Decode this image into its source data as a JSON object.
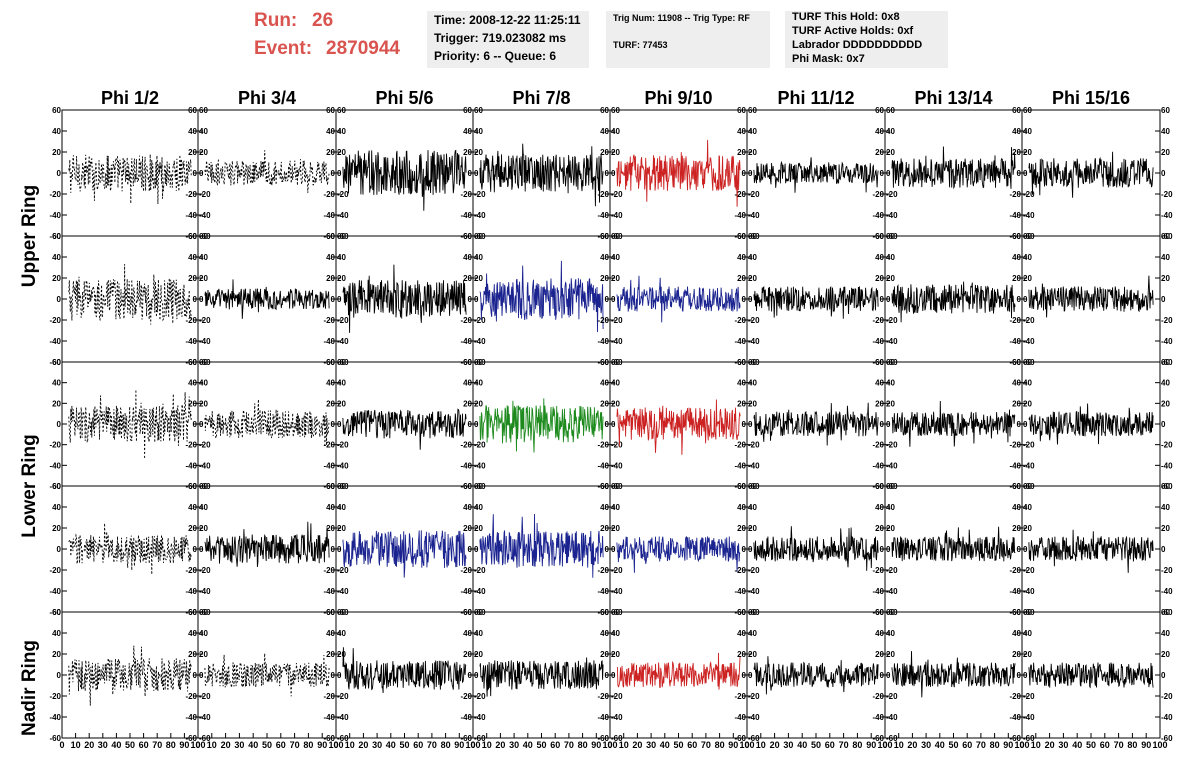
{
  "run_info": {
    "run_label": "Run:",
    "run_value": "26",
    "event_label": "Event:",
    "event_value": "2870944"
  },
  "time_box": {
    "time": "Time: 2008-12-22 11:25:11",
    "trigger": "Trigger: 719.023082 ms",
    "priority": "Priority: 6 -- Queue: 6"
  },
  "trig_box": {
    "trig": "Trig Num: 11908 -- Trig Type: RF",
    "turf": "TURF: 77453"
  },
  "turf_box": {
    "hold": "TURF This Hold: 0x8",
    "active": "TURF Active Holds: 0xf",
    "labrador": "Labrador DDDDDDDDDD",
    "phi_mask": "Phi Mask: 0x7"
  },
  "columns": [
    "Phi 1/2",
    "Phi 3/4",
    "Phi 5/6",
    "Phi 7/8",
    "Phi 9/10",
    "Phi 11/12",
    "Phi 13/14",
    "Phi 15/16"
  ],
  "row_groups": [
    {
      "label": "Upper Ring"
    },
    {
      "label": "Lower Ring"
    },
    {
      "label": "Nadir Ring"
    }
  ],
  "chart_data": {
    "type": "line",
    "xlim": [
      0,
      100
    ],
    "ylim": [
      -60,
      60
    ],
    "y_ticks": [
      -60,
      -40,
      -20,
      0,
      20,
      40,
      60
    ],
    "y_tick_labels": [
      "-60",
      "-40",
      "-20",
      "0",
      "20",
      "40",
      "60"
    ],
    "x_ticks": [
      0,
      10,
      20,
      30,
      40,
      50,
      60,
      70,
      80,
      90,
      100
    ],
    "x_tick_labels": [
      "0",
      "10",
      "20",
      "30",
      "40",
      "50",
      "60",
      "70",
      "80",
      "90",
      "100"
    ],
    "samples_per_trace": 240,
    "colors": {
      "black": "#000000",
      "red": "#cc2222",
      "blue": "#1a238f",
      "green": "#1d8a1d"
    },
    "panel_styles": [
      [
        "dashed",
        "dashed",
        "black",
        "black",
        "red",
        "black",
        "black",
        "black"
      ],
      [
        "dashed",
        "black",
        "black",
        "blue",
        "blue",
        "black",
        "black",
        "black"
      ],
      [
        "dashed",
        "dashed",
        "black",
        "green",
        "red",
        "black",
        "black",
        "black"
      ],
      [
        "dashed",
        "black",
        "blue",
        "blue",
        "blue",
        "black",
        "black",
        "black"
      ],
      [
        "dashed",
        "dashed",
        "black",
        "black",
        "red",
        "black",
        "black",
        "black"
      ]
    ],
    "panel_amplitude": [
      [
        18,
        12,
        22,
        18,
        17,
        10,
        14,
        14
      ],
      [
        20,
        10,
        18,
        20,
        12,
        12,
        14,
        12
      ],
      [
        18,
        14,
        14,
        18,
        16,
        12,
        12,
        12
      ],
      [
        14,
        14,
        18,
        18,
        12,
        12,
        12,
        12
      ],
      [
        16,
        12,
        14,
        14,
        12,
        12,
        12,
        12
      ]
    ]
  }
}
